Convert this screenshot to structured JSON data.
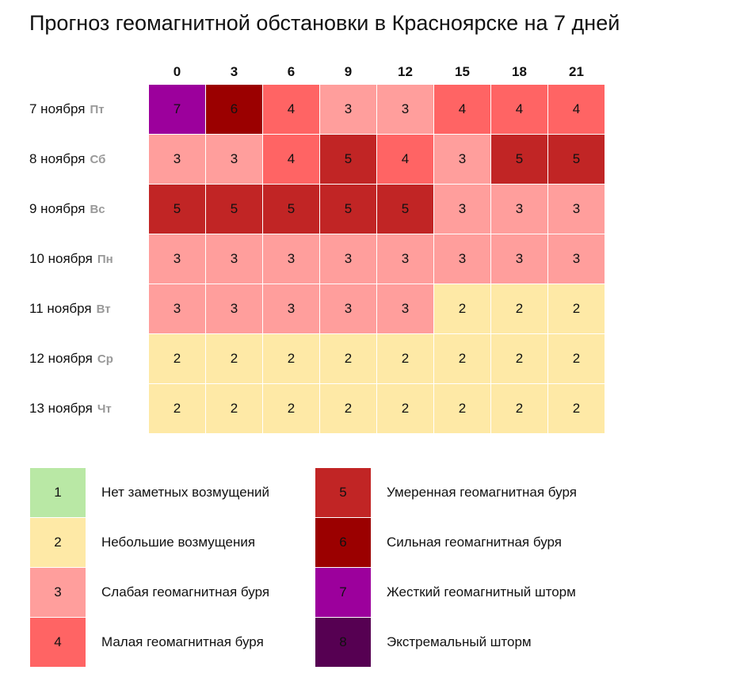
{
  "chart_data": {
    "type": "heatmap",
    "title": "Прогноз геомагнитной обстановки в Красноярске на 7 дней",
    "columns": [
      "0",
      "3",
      "6",
      "9",
      "12",
      "15",
      "18",
      "21"
    ],
    "rows": [
      {
        "date": "7 ноября",
        "dow": "Пт",
        "values": [
          7,
          6,
          4,
          3,
          3,
          4,
          4,
          4
        ]
      },
      {
        "date": "8 ноября",
        "dow": "Сб",
        "values": [
          3,
          3,
          4,
          5,
          4,
          3,
          5,
          5
        ]
      },
      {
        "date": "9 ноября",
        "dow": "Вс",
        "values": [
          5,
          5,
          5,
          5,
          5,
          3,
          3,
          3
        ]
      },
      {
        "date": "10 ноября",
        "dow": "Пн",
        "values": [
          3,
          3,
          3,
          3,
          3,
          3,
          3,
          3
        ]
      },
      {
        "date": "11 ноября",
        "dow": "Вт",
        "values": [
          3,
          3,
          3,
          3,
          3,
          2,
          2,
          2
        ]
      },
      {
        "date": "12 ноября",
        "dow": "Ср",
        "values": [
          2,
          2,
          2,
          2,
          2,
          2,
          2,
          2
        ]
      },
      {
        "date": "13 ноября",
        "dow": "Чт",
        "values": [
          2,
          2,
          2,
          2,
          2,
          2,
          2,
          2
        ]
      }
    ],
    "legend": [
      {
        "level": "1",
        "label": "Нет заметных возмущений",
        "color": "#b9e8a5"
      },
      {
        "level": "2",
        "label": "Небольшие возмущения",
        "color": "#fee9a6"
      },
      {
        "level": "3",
        "label": "Слабая геомагнитная буря",
        "color": "#ff9e9c"
      },
      {
        "level": "4",
        "label": "Малая геомагнитная буря",
        "color": "#ff6464"
      },
      {
        "level": "5",
        "label": "Умеренная геомагнитная буря",
        "color": "#c12525"
      },
      {
        "level": "6",
        "label": "Сильная геомагнитная буря",
        "color": "#9b0000"
      },
      {
        "level": "7",
        "label": "Жесткий геомагнитный шторм",
        "color": "#9c009c"
      },
      {
        "level": "8",
        "label": "Экстремальный шторм",
        "color": "#560052"
      }
    ]
  }
}
